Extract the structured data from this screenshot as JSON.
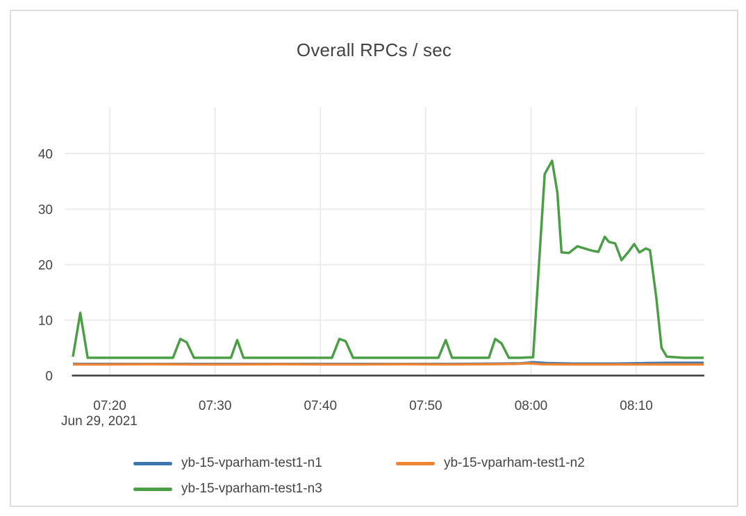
{
  "chart_data": {
    "type": "line",
    "title": "Overall RPCs / sec",
    "x_axis": {
      "date_label": "Jun 29, 2021",
      "tick_labels": [
        "07:20",
        "07:30",
        "07:40",
        "07:50",
        "08:00",
        "08:10"
      ],
      "tick_minutes": [
        20,
        30,
        40,
        50,
        60,
        70
      ],
      "range_minutes": [
        16.5,
        76.46
      ],
      "unit": "time of day (minutes after 07:00)"
    },
    "y_axis": {
      "ticks": [
        0,
        10,
        20,
        30,
        40
      ],
      "range": [
        0,
        48.3
      ],
      "grid": true
    },
    "legend_position": "bottom",
    "colors": {
      "grid": "#ebebeb",
      "axis": "#3b3b3b",
      "text": "#444444",
      "card_border": "#dcdcdc",
      "background": "#ffffff"
    },
    "series": [
      {
        "name": "yb-15-vparham-test1-n1",
        "color": "#3c76b0",
        "points": [
          [
            16.5,
            2.1
          ],
          [
            22,
            2.1
          ],
          [
            28,
            2.1
          ],
          [
            34,
            2.1
          ],
          [
            40,
            2.1
          ],
          [
            46,
            2.1
          ],
          [
            52,
            2.1
          ],
          [
            57,
            2.15
          ],
          [
            59,
            2.2
          ],
          [
            60.2,
            2.4
          ],
          [
            61.5,
            2.25
          ],
          [
            64,
            2.15
          ],
          [
            68,
            2.15
          ],
          [
            71,
            2.25
          ],
          [
            73,
            2.3
          ],
          [
            76.4,
            2.3
          ]
        ]
      },
      {
        "name": "yb-15-vparham-test1-n2",
        "color": "#ef8432",
        "points": [
          [
            16.5,
            2.0
          ],
          [
            20,
            2.0
          ],
          [
            24,
            2.05
          ],
          [
            28,
            2.0
          ],
          [
            32,
            2.0
          ],
          [
            36,
            2.05
          ],
          [
            40,
            2.0
          ],
          [
            44,
            2.0
          ],
          [
            48,
            2.05
          ],
          [
            52,
            2.0
          ],
          [
            56,
            2.05
          ],
          [
            58.5,
            2.1
          ],
          [
            59.8,
            2.2
          ],
          [
            61,
            2.05
          ],
          [
            63,
            2.0
          ],
          [
            66,
            2.0
          ],
          [
            69,
            2.0
          ],
          [
            72,
            2.0
          ],
          [
            76.4,
            2.0
          ]
        ]
      },
      {
        "name": "yb-15-vparham-test1-n3",
        "color": "#4c9e46",
        "points": [
          [
            16.5,
            3.4
          ],
          [
            17.2,
            11.3
          ],
          [
            17.9,
            3.2
          ],
          [
            21,
            3.2
          ],
          [
            24,
            3.2
          ],
          [
            26.0,
            3.2
          ],
          [
            26.7,
            6.6
          ],
          [
            27.3,
            6.0
          ],
          [
            28.0,
            3.2
          ],
          [
            30,
            3.2
          ],
          [
            31.5,
            3.2
          ],
          [
            32.1,
            6.4
          ],
          [
            32.7,
            3.2
          ],
          [
            35,
            3.2
          ],
          [
            38,
            3.2
          ],
          [
            41.1,
            3.2
          ],
          [
            41.8,
            6.6
          ],
          [
            42.4,
            6.2
          ],
          [
            43.1,
            3.2
          ],
          [
            45,
            3.2
          ],
          [
            48,
            3.2
          ],
          [
            51.2,
            3.2
          ],
          [
            51.9,
            6.4
          ],
          [
            52.5,
            3.2
          ],
          [
            54,
            3.2
          ],
          [
            56.0,
            3.2
          ],
          [
            56.6,
            6.6
          ],
          [
            57.2,
            5.8
          ],
          [
            57.9,
            3.2
          ],
          [
            59,
            3.2
          ],
          [
            60.2,
            3.3
          ],
          [
            61.3,
            36.3
          ],
          [
            62.0,
            38.7
          ],
          [
            62.5,
            33.0
          ],
          [
            62.9,
            22.2
          ],
          [
            63.6,
            22.1
          ],
          [
            64.4,
            23.3
          ],
          [
            65.1,
            22.9
          ],
          [
            65.8,
            22.5
          ],
          [
            66.4,
            22.3
          ],
          [
            67.0,
            25.0
          ],
          [
            67.4,
            24.1
          ],
          [
            68.0,
            23.8
          ],
          [
            68.6,
            20.8
          ],
          [
            69.3,
            22.4
          ],
          [
            69.8,
            23.7
          ],
          [
            70.3,
            22.2
          ],
          [
            70.9,
            22.9
          ],
          [
            71.3,
            22.6
          ],
          [
            71.9,
            14.0
          ],
          [
            72.4,
            5.0
          ],
          [
            72.9,
            3.4
          ],
          [
            74.5,
            3.2
          ],
          [
            76.4,
            3.2
          ]
        ]
      }
    ]
  }
}
